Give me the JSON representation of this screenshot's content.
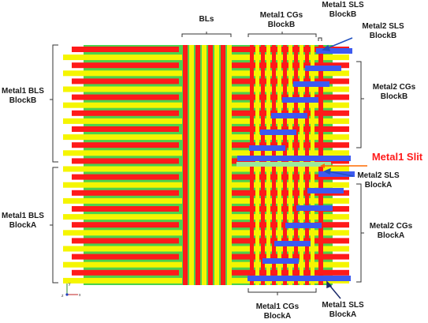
{
  "labels": {
    "bls": "BLs",
    "m1_cgs_b_1": "Metal1 CGs",
    "m1_cgs_b_2": "BlockB",
    "m1_sls_b_1": "Metal1 SLS",
    "m1_sls_b_2": "BlockB",
    "m2_sls_b_1": "Metal2 SLS",
    "m2_sls_b_2": "BlockB",
    "m1_bls_b_1": "Metal1 BLS",
    "m1_bls_b_2": "BlockB",
    "m2_cgs_b_1": "Metal2 CGs",
    "m2_cgs_b_2": "BlockB",
    "m1_slit": "Metal1 Slit",
    "m2_sls_a_1": "Metal2 SLS",
    "m2_sls_a_2": "BlockA",
    "m1_bls_a_1": "Metal1 BLS",
    "m1_bls_a_2": "BlockA",
    "m2_cgs_a_1": "Metal2 CGs",
    "m2_cgs_a_2": "BlockA",
    "m1_cgs_a_1": "Metal1 CGs",
    "m1_cgs_a_2": "BlockA",
    "m1_sls_a_1": "Metal1 SLS",
    "m1_sls_a_2": "BlockA"
  },
  "axes": {
    "x": "x",
    "y": "y",
    "z": "z"
  },
  "colors": {
    "background": "#4dd14d",
    "metal_red": "#ff1a1a",
    "metal_yellow": "#f5f500",
    "metal_blue": "#3d5af0",
    "slit_arrow": "#ff6a00",
    "bracket": "#333333"
  }
}
